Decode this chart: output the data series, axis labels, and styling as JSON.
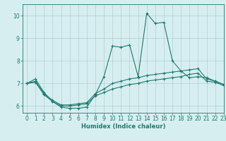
{
  "title": "",
  "xlabel": "Humidex (Indice chaleur)",
  "ylabel": "",
  "bg_color": "#d7eef1",
  "line_color": "#1e7b6e",
  "grid_color": "#b0d0d4",
  "xlim": [
    -0.5,
    23
  ],
  "ylim": [
    5.7,
    10.5
  ],
  "xticks": [
    0,
    1,
    2,
    3,
    4,
    5,
    6,
    7,
    8,
    9,
    10,
    11,
    12,
    13,
    14,
    15,
    16,
    17,
    18,
    19,
    20,
    21,
    22,
    23
  ],
  "yticks": [
    6,
    7,
    8,
    9,
    10
  ],
  "line1_x": [
    0,
    1,
    2,
    3,
    4,
    5,
    6,
    7,
    8,
    9,
    10,
    11,
    12,
    13,
    14,
    15,
    16,
    17,
    18,
    19,
    20,
    21,
    22,
    23
  ],
  "line1_y": [
    7.0,
    7.2,
    6.6,
    6.2,
    5.95,
    5.9,
    5.9,
    5.95,
    6.5,
    7.3,
    8.65,
    8.6,
    8.7,
    7.3,
    10.1,
    9.65,
    9.7,
    8.0,
    7.55,
    7.25,
    7.3,
    7.25,
    7.1,
    6.95
  ],
  "line2_x": [
    0,
    1,
    2,
    3,
    4,
    5,
    6,
    7,
    8,
    9,
    10,
    11,
    12,
    13,
    14,
    15,
    16,
    17,
    18,
    19,
    20,
    21,
    22,
    23
  ],
  "line2_y": [
    7.0,
    7.1,
    6.55,
    6.25,
    6.05,
    6.05,
    6.1,
    6.15,
    6.55,
    6.75,
    7.0,
    7.1,
    7.2,
    7.25,
    7.35,
    7.4,
    7.45,
    7.5,
    7.55,
    7.6,
    7.65,
    7.2,
    7.1,
    6.95
  ],
  "line3_x": [
    0,
    1,
    2,
    3,
    4,
    5,
    6,
    7,
    8,
    9,
    10,
    11,
    12,
    13,
    14,
    15,
    16,
    17,
    18,
    19,
    20,
    21,
    22,
    23
  ],
  "line3_y": [
    7.0,
    7.05,
    6.5,
    6.2,
    6.0,
    6.0,
    6.05,
    6.1,
    6.45,
    6.6,
    6.75,
    6.85,
    6.95,
    7.0,
    7.1,
    7.15,
    7.2,
    7.25,
    7.3,
    7.4,
    7.45,
    7.1,
    7.05,
    6.9
  ],
  "marker": "+",
  "markersize": 3,
  "markeredgewidth": 0.8,
  "linewidth": 0.8,
  "tick_fontsize": 5.5,
  "xlabel_fontsize": 6.0
}
